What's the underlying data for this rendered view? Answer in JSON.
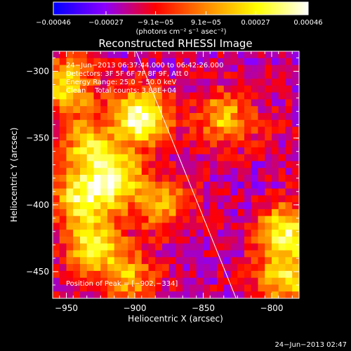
{
  "chart_data": {
    "type": "heatmap",
    "title": "Reconstructed RHESSI Image",
    "xlabel": "Heliocentric X (arcsec)",
    "ylabel": "Heliocentric Y (arcsec)",
    "xlim": [
      -960,
      -780
    ],
    "ylim": [
      -470,
      -285
    ],
    "xticks": [
      -950,
      -900,
      -850,
      -800
    ],
    "xtick_labels": [
      "−950",
      "−900",
      "−850",
      "−800"
    ],
    "yticks": [
      -450,
      -400,
      -350,
      -300
    ],
    "ytick_labels": [
      "−450",
      "−400",
      "−350",
      "−300"
    ],
    "colorbar": {
      "min": -0.00046,
      "max": 0.00046,
      "unit_label": "(photons cm⁻² s⁻¹ asec⁻²)",
      "ticks": [
        -0.00046,
        -0.00027,
        -9.1e-05,
        9.1e-05,
        0.00027,
        0.00046
      ],
      "tick_labels": [
        "−0.00046",
        "−0.00027",
        "−9.1e−05",
        "9.1e−05",
        "0.00027",
        "0.00046"
      ],
      "colors": [
        "#0000ff",
        "#8a00ff",
        "#ff0000",
        "#ff8a00",
        "#ffff00",
        "#ffffff"
      ]
    },
    "annotations": [
      "24−Jun−2013 06:37:44.000 to 06:42:26.000",
      "Detectors: 3F 5F 6F 7F 8F 9F, Att 0",
      "Energy Range: 25.0 − 50.0 keV",
      "Clean    Total counts: 3.88E+04"
    ],
    "peak_label": "Position of Peak = [−902,−334]",
    "peak_position": [
      -902,
      -334
    ],
    "limb_line": [
      [
        -899,
        -285
      ],
      [
        -826,
        -470
      ]
    ],
    "hot_spots": [
      {
        "x": -896,
        "y": -335,
        "value": 0.00046
      },
      {
        "x": -915,
        "y": -380,
        "value": 0.00035
      },
      {
        "x": -940,
        "y": -395,
        "value": 0.00028
      },
      {
        "x": -930,
        "y": -430,
        "value": 0.00028
      },
      {
        "x": -950,
        "y": -310,
        "value": 0.00027
      },
      {
        "x": -790,
        "y": -420,
        "value": 0.00032
      },
      {
        "x": -790,
        "y": -455,
        "value": 0.00025
      },
      {
        "x": -835,
        "y": -335,
        "value": 0.00018
      },
      {
        "x": -935,
        "y": -355,
        "value": 0.0002
      },
      {
        "x": -880,
        "y": -400,
        "value": 0.00015
      },
      {
        "x": -905,
        "y": -455,
        "value": 0.00015
      }
    ],
    "cold_spots": [
      {
        "x": -820,
        "y": -390,
        "value": -0.0002
      },
      {
        "x": -855,
        "y": -300,
        "value": -0.00018
      },
      {
        "x": -870,
        "y": -455,
        "value": -0.00016
      },
      {
        "x": -945,
        "y": -455,
        "value": -0.00012
      },
      {
        "x": -800,
        "y": -345,
        "value": -0.00015
      }
    ],
    "background_level": -0.00018
  },
  "footer": {
    "timestamp": "24−Jun−2013 02:47"
  }
}
